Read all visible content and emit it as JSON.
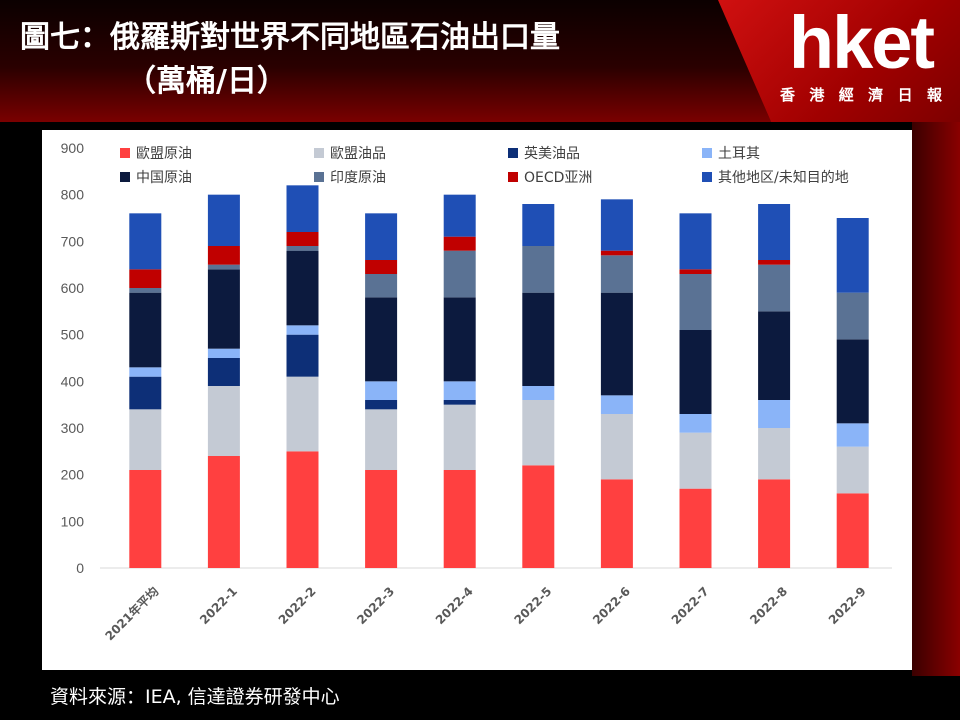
{
  "header": {
    "title_line1": "圖七：俄羅斯對世界不同地區石油出口量",
    "title_line2": "（萬桶/日）"
  },
  "logo": {
    "name": "hket",
    "subtitle_chars": [
      "香",
      "港",
      "經",
      "濟",
      "日",
      "報"
    ]
  },
  "source": "資料來源：IEA, 信達證券研發中心",
  "chart_data": {
    "type": "bar",
    "stacked": true,
    "title": "圖七：俄羅斯對世界不同地區石油出口量",
    "ylim": [
      0,
      900
    ],
    "yticks": [
      0,
      100,
      200,
      300,
      400,
      500,
      600,
      700,
      800,
      900
    ],
    "grid": false,
    "legend_position": "top",
    "categories": [
      "2021年平均",
      "2022-1",
      "2022-2",
      "2022-3",
      "2022-4",
      "2022-5",
      "2022-6",
      "2022-7",
      "2022-8",
      "2022-9"
    ],
    "series": [
      {
        "name": "歐盟原油",
        "color": "#ff4040",
        "values": [
          210,
          240,
          250,
          210,
          210,
          220,
          190,
          170,
          190,
          160
        ]
      },
      {
        "name": "歐盟油品",
        "color": "#c4cad4",
        "values": [
          130,
          150,
          160,
          130,
          140,
          140,
          140,
          120,
          110,
          100
        ]
      },
      {
        "name": "英美油品",
        "color": "#0d2f77",
        "values": [
          70,
          60,
          90,
          20,
          10,
          0,
          0,
          0,
          0,
          0
        ]
      },
      {
        "name": "土耳其",
        "color": "#8ab4f8",
        "values": [
          20,
          20,
          20,
          40,
          40,
          30,
          40,
          40,
          60,
          50
        ]
      },
      {
        "name": "中国原油",
        "color": "#0c1a3e",
        "values": [
          160,
          170,
          160,
          180,
          180,
          200,
          220,
          180,
          190,
          180
        ]
      },
      {
        "name": "印度原油",
        "color": "#5a7294",
        "values": [
          10,
          10,
          10,
          50,
          100,
          100,
          80,
          120,
          100,
          100
        ]
      },
      {
        "name": "OECD亚洲",
        "color": "#c00000",
        "values": [
          40,
          40,
          30,
          30,
          30,
          0,
          10,
          10,
          10,
          0
        ]
      },
      {
        "name": "其他地区/未知目的地",
        "color": "#1f4fb5",
        "values": [
          120,
          110,
          100,
          100,
          90,
          90,
          110,
          120,
          120,
          160
        ]
      }
    ]
  }
}
